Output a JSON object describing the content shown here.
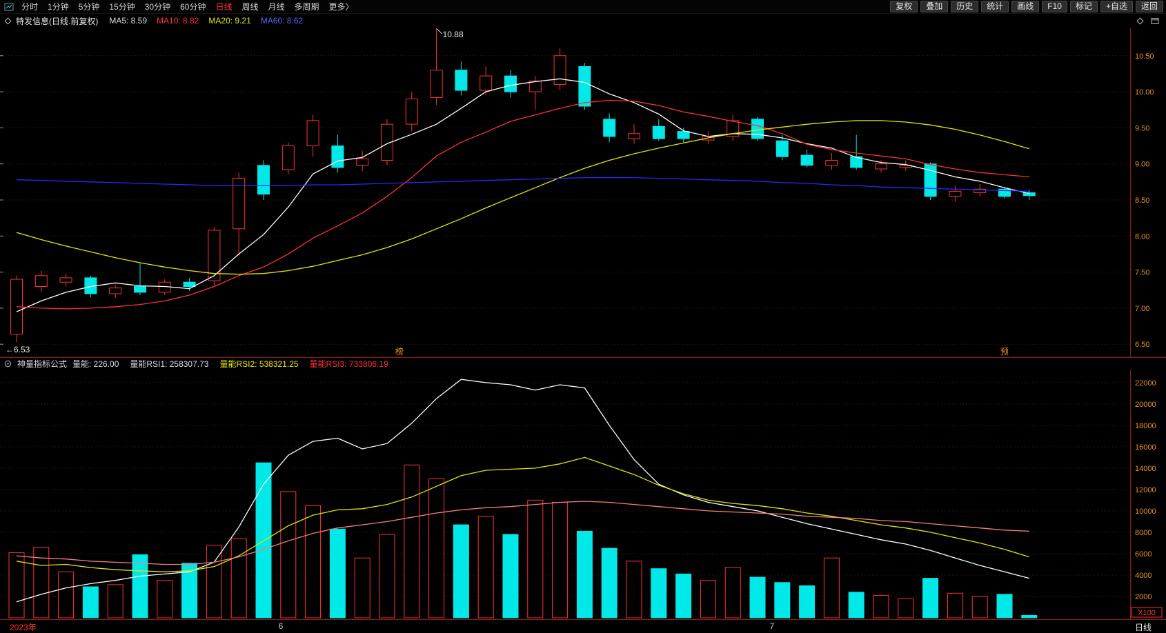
{
  "topbar": {
    "left_items": [
      {
        "label": "分时",
        "active": false
      },
      {
        "label": "1分钟",
        "active": false
      },
      {
        "label": "5分钟",
        "active": false
      },
      {
        "label": "15分钟",
        "active": false
      },
      {
        "label": "30分钟",
        "active": false
      },
      {
        "label": "60分钟",
        "active": false
      },
      {
        "label": "日线",
        "active": true
      },
      {
        "label": "周线",
        "active": false
      },
      {
        "label": "月线",
        "active": false
      },
      {
        "label": "多周期",
        "active": false
      },
      {
        "label": "更多〉",
        "active": false
      }
    ],
    "right_buttons": [
      "复权",
      "叠加",
      "历史",
      "统计",
      "画线",
      "F10",
      "标记",
      "+自选",
      "返回"
    ]
  },
  "infobar": {
    "title": "特发信息(日线.前复权)",
    "ma_labels": [
      {
        "name": "MA5",
        "label": "MA5: 8.59",
        "color": "#dcdcdc"
      },
      {
        "name": "MA10",
        "label": "MA10: 8.82",
        "color": "#ff3232"
      },
      {
        "name": "MA20",
        "label": "MA20: 9.21",
        "color": "#e6e600"
      },
      {
        "name": "MA60",
        "label": "MA60: 8.62",
        "color": "#5566ff"
      }
    ]
  },
  "indicator": {
    "name": "神量指标公式",
    "fields": [
      {
        "label": "量能: 226.00",
        "color": "#dcdcdc"
      },
      {
        "label": "量能RSI1: 258307.73",
        "color": "#dcdcdc"
      },
      {
        "label": "量能RSI2: 538321.25",
        "color": "#e6e600"
      },
      {
        "label": "量能RSI3: 733806.19",
        "color": "#ff3232"
      }
    ]
  },
  "bottom_axis": {
    "year_label": "2023年",
    "month_labels": [
      {
        "index": 10.7,
        "label": "6"
      },
      {
        "index": 30.6,
        "label": "7"
      }
    ],
    "period_label": "日线"
  },
  "colors": {
    "background": "#000000",
    "up": "#ff3232",
    "down": "#00e8e8",
    "grid": "#5a1616",
    "divider": "#8a1f1f",
    "axis_text": "#ee9220",
    "marker_text": "#ee9220",
    "annotation_text": "#e8e8e8"
  },
  "chart_data": [
    {
      "type": "candlestick",
      "title": "特发信息(日线.前复权)",
      "y_axis": {
        "max": 10.89,
        "min": 6.32,
        "ticks": [
          "10.50",
          "10.00",
          "9.50",
          "9.00",
          "8.50",
          "8.00",
          "7.50",
          "7.00",
          "6.50"
        ]
      },
      "candles": [
        [
          6.64,
          7.45,
          6.53,
          7.4
        ],
        [
          7.3,
          7.52,
          7.22,
          7.45
        ],
        [
          7.36,
          7.48,
          7.3,
          7.42
        ],
        [
          7.42,
          7.45,
          7.15,
          7.2
        ],
        [
          7.2,
          7.32,
          7.14,
          7.28
        ],
        [
          7.3,
          7.62,
          7.18,
          7.22
        ],
        [
          7.22,
          7.4,
          7.18,
          7.36
        ],
        [
          7.36,
          7.42,
          7.24,
          7.3
        ],
        [
          7.38,
          8.12,
          7.32,
          8.08
        ],
        [
          8.1,
          8.88,
          7.72,
          8.8
        ],
        [
          8.98,
          9.05,
          8.5,
          8.58
        ],
        [
          8.92,
          9.3,
          8.85,
          9.25
        ],
        [
          9.25,
          9.68,
          9.1,
          9.6
        ],
        [
          9.25,
          9.4,
          8.88,
          8.95
        ],
        [
          8.98,
          9.18,
          8.9,
          9.07
        ],
        [
          9.05,
          9.62,
          8.98,
          9.55
        ],
        [
          9.55,
          10.0,
          9.45,
          9.9
        ],
        [
          9.92,
          10.88,
          9.82,
          10.3
        ],
        [
          10.3,
          10.42,
          9.95,
          10.02
        ],
        [
          10.02,
          10.35,
          9.95,
          10.22
        ],
        [
          10.22,
          10.3,
          9.92,
          10.0
        ],
        [
          10.0,
          10.22,
          9.75,
          10.15
        ],
        [
          10.1,
          10.6,
          10.02,
          10.5
        ],
        [
          10.35,
          10.4,
          9.75,
          9.8
        ],
        [
          9.62,
          9.7,
          9.3,
          9.38
        ],
        [
          9.35,
          9.55,
          9.28,
          9.42
        ],
        [
          9.52,
          9.62,
          9.32,
          9.35
        ],
        [
          9.45,
          9.5,
          9.3,
          9.35
        ],
        [
          9.33,
          9.45,
          9.28,
          9.38
        ],
        [
          9.38,
          9.68,
          9.32,
          9.6
        ],
        [
          9.62,
          9.65,
          9.32,
          9.35
        ],
        [
          9.32,
          9.4,
          9.05,
          9.1
        ],
        [
          9.12,
          9.2,
          8.95,
          8.98
        ],
        [
          8.98,
          9.15,
          8.92,
          9.05
        ],
        [
          9.1,
          9.4,
          8.92,
          8.95
        ],
        [
          8.93,
          9.05,
          8.88,
          9.0
        ],
        [
          8.95,
          9.05,
          8.9,
          8.98
        ],
        [
          9.0,
          9.02,
          8.5,
          8.55
        ],
        [
          8.55,
          8.7,
          8.48,
          8.62
        ],
        [
          8.6,
          8.72,
          8.55,
          8.65
        ],
        [
          8.65,
          8.68,
          8.52,
          8.55
        ],
        [
          8.6,
          8.64,
          8.5,
          8.56
        ]
      ],
      "ma_series": [
        {
          "name": "MA5",
          "color": "#ffffff",
          "values": [
            6.95,
            7.1,
            7.22,
            7.3,
            7.35,
            7.31,
            7.3,
            7.27,
            7.45,
            7.75,
            8.02,
            8.4,
            8.86,
            9.04,
            9.09,
            9.28,
            9.41,
            9.55,
            9.77,
            10.0,
            10.09,
            10.14,
            10.18,
            10.13,
            9.97,
            9.85,
            9.69,
            9.46,
            9.38,
            9.42,
            9.41,
            9.36,
            9.28,
            9.22,
            9.09,
            9.02,
            8.99,
            8.91,
            8.82,
            8.76,
            8.67,
            8.59
          ]
        },
        {
          "name": "MA10",
          "color": "#ff3232",
          "values": [
            7.02,
            7.0,
            6.99,
            7.0,
            7.02,
            7.05,
            7.1,
            7.18,
            7.3,
            7.45,
            7.57,
            7.75,
            7.97,
            8.14,
            8.32,
            8.55,
            8.81,
            9.11,
            9.3,
            9.44,
            9.59,
            9.68,
            9.77,
            9.85,
            9.88,
            9.87,
            9.81,
            9.72,
            9.66,
            9.59,
            9.53,
            9.42,
            9.27,
            9.2,
            9.15,
            9.11,
            9.07,
            8.99,
            8.93,
            8.88,
            8.85,
            8.82
          ]
        },
        {
          "name": "MA20",
          "color": "#e6e600",
          "values": [
            8.05,
            7.95,
            7.86,
            7.78,
            7.7,
            7.63,
            7.57,
            7.52,
            7.48,
            7.47,
            7.48,
            7.52,
            7.58,
            7.66,
            7.74,
            7.84,
            7.96,
            8.1,
            8.24,
            8.39,
            8.53,
            8.67,
            8.81,
            8.94,
            9.05,
            9.14,
            9.22,
            9.29,
            9.36,
            9.42,
            9.47,
            9.51,
            9.55,
            9.58,
            9.6,
            9.6,
            9.58,
            9.54,
            9.48,
            9.4,
            9.31,
            9.21
          ]
        },
        {
          "name": "MA60",
          "color": "#2828ff",
          "values": [
            8.78,
            8.77,
            8.76,
            8.75,
            8.74,
            8.73,
            8.72,
            8.71,
            8.7,
            8.7,
            8.7,
            8.7,
            8.71,
            8.71,
            8.72,
            8.73,
            8.74,
            8.75,
            8.76,
            8.77,
            8.78,
            8.79,
            8.8,
            8.81,
            8.81,
            8.81,
            8.8,
            8.79,
            8.78,
            8.77,
            8.76,
            8.74,
            8.73,
            8.71,
            8.7,
            8.68,
            8.67,
            8.66,
            8.65,
            8.64,
            8.63,
            8.62
          ]
        }
      ],
      "annotations": [
        {
          "index": 17,
          "price": 10.88,
          "text": "10.88",
          "type": "high"
        },
        {
          "index": 0,
          "price": 6.53,
          "text": "←6.53",
          "type": "low"
        }
      ],
      "event_markers": [
        {
          "index": 15.5,
          "label": "榜"
        },
        {
          "index": 40,
          "label": "预"
        }
      ]
    },
    {
      "type": "volume-bars-with-lines",
      "unit_label": "X100",
      "y_axis": {
        "max": 22700,
        "ticks": [
          22000,
          20000,
          18000,
          16000,
          14000,
          12000,
          10000,
          8000,
          6000,
          4000,
          2000
        ]
      },
      "values": [
        6100,
        6600,
        4300,
        2900,
        3100,
        5900,
        3500,
        5100,
        6800,
        7400,
        14500,
        11800,
        10500,
        8300,
        5600,
        7800,
        14300,
        13000,
        8700,
        9500,
        7800,
        11000,
        10800,
        8100,
        6500,
        5300,
        4600,
        4100,
        3500,
        4700,
        3800,
        3300,
        3000,
        5600,
        2400,
        2100,
        1800,
        3700,
        2300,
        2000,
        2200,
        226
      ],
      "lines": [
        {
          "name": "vol-line-1",
          "color": "#ffffff",
          "values": [
            1500,
            2200,
            2800,
            3200,
            3500,
            3900,
            4100,
            4300,
            5200,
            8500,
            12500,
            15200,
            16500,
            16800,
            15800,
            16300,
            18200,
            20500,
            22300,
            22000,
            21800,
            21300,
            21800,
            21500,
            18000,
            14800,
            12500,
            11500,
            10800,
            10400,
            10000,
            9400,
            8800,
            8300,
            7800,
            7300,
            6900,
            6300,
            5600,
            4900,
            4300,
            3700
          ]
        },
        {
          "name": "vol-line-2",
          "color": "#e6e600",
          "values": [
            5300,
            4900,
            5000,
            4700,
            4500,
            4400,
            4300,
            4400,
            4800,
            5800,
            7200,
            8600,
            9600,
            10100,
            10200,
            10600,
            11300,
            12300,
            13300,
            13800,
            13900,
            14000,
            14400,
            15000,
            14200,
            13400,
            12400,
            11600,
            11000,
            10700,
            10500,
            10200,
            9800,
            9500,
            9100,
            8700,
            8400,
            8000,
            7500,
            7000,
            6400,
            5700
          ]
        },
        {
          "name": "vol-line-3",
          "color": "#f28080",
          "values": [
            5800,
            5600,
            5500,
            5300,
            5200,
            5100,
            5000,
            5000,
            5200,
            5700,
            6400,
            7200,
            7900,
            8400,
            8700,
            9000,
            9400,
            9800,
            10100,
            10300,
            10400,
            10600,
            10800,
            10900,
            10800,
            10600,
            10400,
            10200,
            10000,
            9900,
            9800,
            9700,
            9500,
            9400,
            9300,
            9100,
            9000,
            8800,
            8600,
            8400,
            8200,
            8100
          ]
        }
      ]
    }
  ]
}
